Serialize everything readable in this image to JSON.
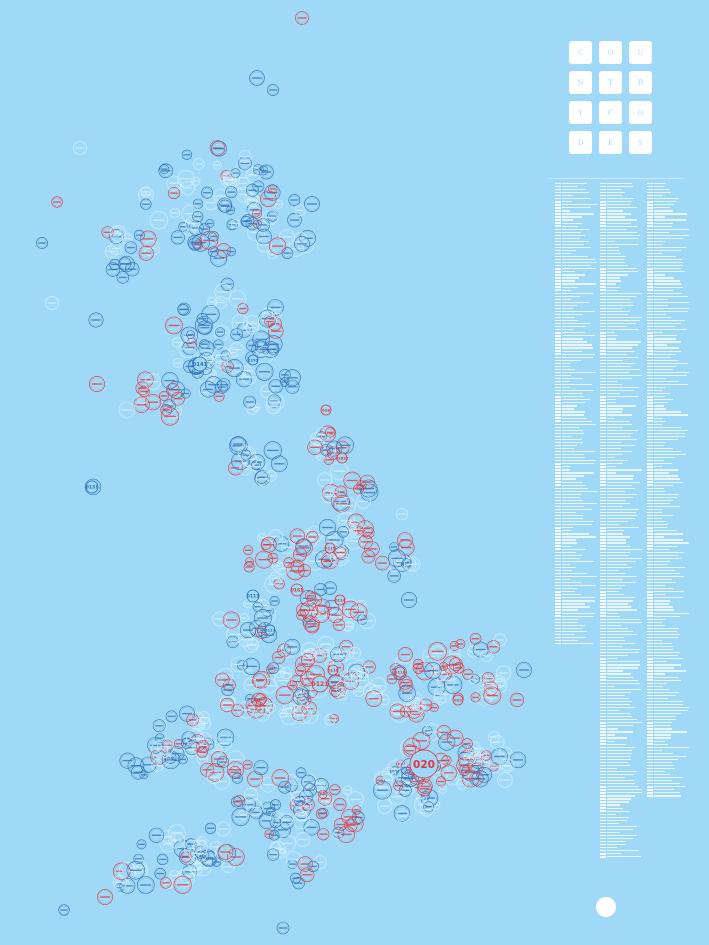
{
  "title": {
    "letters": [
      "C",
      "O",
      "U",
      "N",
      "T",
      "R",
      "Y",
      "C",
      "O",
      "D",
      "E",
      "S"
    ]
  },
  "highlight_codes": [
    "020",
    "0121",
    "0161",
    "0141",
    "0131",
    "0113",
    "0114",
    "0115",
    "0116",
    "0117",
    "0118",
    "028",
    "029",
    "0191",
    "01632"
  ],
  "logo": {
    "label": ""
  },
  "colors": {
    "background": "#9fd9f7",
    "dark_blue": "#2f6fb4",
    "red": "#e0363c",
    "pale": "#d9f1fd",
    "white": "#ffffff"
  }
}
